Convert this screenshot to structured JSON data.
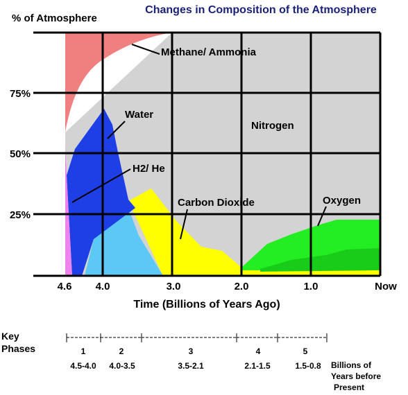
{
  "chart_data": {
    "type": "area",
    "title": "Changes in Composition of the Atmosphere",
    "ylabel": "% of Atmosphere",
    "xlabel": "Time (Billions of Years Ago)",
    "x_ticks": [
      "4.6",
      "4.0",
      "3.0",
      "2.0",
      "1.0",
      "Now"
    ],
    "y_ticks": [
      "25%",
      "50%",
      "75%"
    ],
    "xlim": [
      4.6,
      0
    ],
    "ylim": [
      0,
      100
    ],
    "grid": true,
    "colors": {
      "methane": "#f08080",
      "nitrogen": "#d3d3d3",
      "water": "#1f3fe6",
      "h2he": "#ee82ee",
      "co2": "#ffff00",
      "oxygen": "#22ee22",
      "lightblue": "#5bc8f5"
    },
    "series": [
      {
        "name": "Methane/ Ammonia",
        "x": [
          4.6,
          4.2,
          3.6,
          3.0
        ],
        "y": [
          100,
          100,
          100,
          100
        ],
        "y_lower": [
          59,
          80,
          96,
          100
        ]
      },
      {
        "name": "Water",
        "x": [
          4.55,
          4.05,
          3.95,
          3.6,
          3.2
        ],
        "y": [
          41,
          68,
          66,
          30,
          0
        ]
      },
      {
        "name": "H2/ He",
        "x": [
          4.6,
          4.5,
          4.3
        ],
        "y": [
          54,
          30,
          0
        ]
      },
      {
        "name": "Carbon Dioxide",
        "x": [
          3.6,
          3.3,
          3.0,
          2.6,
          2.0
        ],
        "y": [
          26,
          35,
          24,
          11,
          5
        ]
      },
      {
        "name": "Nitrogen",
        "x": [
          4.6,
          3.0,
          2.0,
          1.0,
          0
        ],
        "y": [
          59,
          100,
          100,
          100,
          100
        ]
      },
      {
        "name": "Oxygen",
        "x": [
          2.0,
          1.6,
          1.0,
          0.7,
          0
        ],
        "y": [
          3,
          12,
          19,
          23,
          23
        ]
      }
    ]
  },
  "key_phases": {
    "title_line1": "Key",
    "title_line2": "Phases",
    "numbers": [
      "1",
      "2",
      "3",
      "4",
      "5"
    ],
    "ranges": [
      "4.5-4.0",
      "4.0-3.5",
      "3.5-2.1",
      "2.1-1.5",
      "1.5-0.8"
    ],
    "note_line1": "Billions of",
    "note_line2": "Years before",
    "note_line3": "Present"
  }
}
